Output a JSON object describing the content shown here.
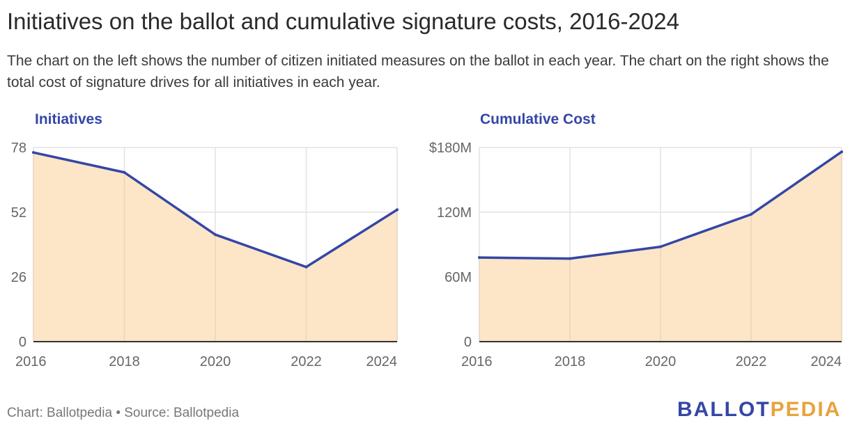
{
  "header": {
    "title": "Initiatives on the ballot and cumulative signature costs, 2016-2024",
    "description": "The chart on the left shows the number of citizen initiated measures on the ballot in each year. The chart on the right shows the total cost of signature drives for all initiatives in each year."
  },
  "colors": {
    "line": "#3446a6",
    "area": "#fde5c8",
    "grid": "#e2e2e2",
    "axis": "#333333"
  },
  "chart_data": [
    {
      "type": "area",
      "title": "Initiatives",
      "x": [
        2016,
        2018,
        2020,
        2022,
        2024
      ],
      "x_tick_labels": [
        "2016",
        "2018",
        "2020",
        "2022",
        "2024"
      ],
      "values": [
        76,
        68,
        43,
        30,
        53
      ],
      "ylim": [
        0,
        78
      ],
      "y_ticks": [
        0,
        26,
        52,
        78
      ],
      "y_tick_labels": [
        "0",
        "26",
        "52",
        "78"
      ],
      "grid": true
    },
    {
      "type": "area",
      "title": "Cumulative Cost",
      "x": [
        2016,
        2018,
        2020,
        2022,
        2024
      ],
      "x_tick_labels": [
        "2016",
        "2018",
        "2020",
        "2022",
        "2024"
      ],
      "values": [
        78,
        77,
        88,
        118,
        176
      ],
      "unit": "millions of dollars",
      "ylim": [
        0,
        180
      ],
      "y_ticks": [
        0,
        60,
        120,
        180
      ],
      "y_tick_labels": [
        "0",
        "60M",
        "120M",
        "$180M"
      ],
      "grid": true
    }
  ],
  "footer": {
    "credit": "Chart: Ballotpedia • Source: Ballotpedia",
    "logo_part1": "BALLOT",
    "logo_part2": "PEDIA"
  }
}
